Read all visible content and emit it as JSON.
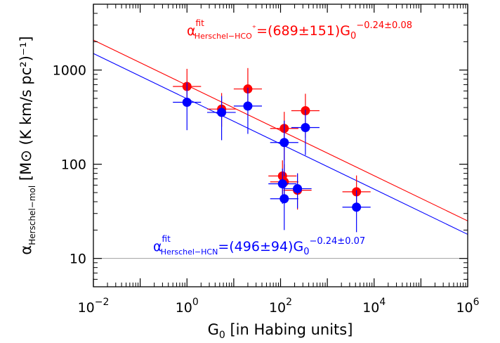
{
  "chart_data": {
    "type": "scatter",
    "x_scale": "log",
    "y_scale": "log",
    "xlim": [
      0.01,
      1000000
    ],
    "ylim": [
      5,
      5000
    ],
    "x_ticks": [
      {
        "value": 0.01,
        "base": "10",
        "exp": "−2"
      },
      {
        "value": 1,
        "base": "10",
        "exp": "0"
      },
      {
        "value": 100,
        "base": "10",
        "exp": "2"
      },
      {
        "value": 10000,
        "base": "10",
        "exp": "4"
      },
      {
        "value": 1000000,
        "base": "10",
        "exp": "6"
      }
    ],
    "y_ticks": [
      {
        "value": 10,
        "label": "10"
      },
      {
        "value": 100,
        "label": "100"
      },
      {
        "value": 1000,
        "label": "1000"
      }
    ],
    "xlabel": {
      "main": "G",
      "sub": "0",
      "rest": " [in Habing units]"
    },
    "ylabel": {
      "symbol": "α",
      "sub": "Herschel−mol",
      "rest": " [M⊙ (K km/s pc²)⁻¹]"
    },
    "reference_line": {
      "y": 10,
      "color": "#a0a0a0"
    },
    "series": [
      {
        "color": "#ff0000",
        "points": [
          {
            "x": 1.0,
            "y": 670,
            "xerr": [
              0.5,
              2.0
            ],
            "yerr": [
              470,
              1030
            ]
          },
          {
            "x": 5.5,
            "y": 385,
            "xerr": [
              2.7,
              11
            ],
            "yerr": [
              250,
              570
            ]
          },
          {
            "x": 20,
            "y": 630,
            "xerr": [
              10,
              40
            ],
            "yerr": [
              400,
              1050
            ]
          },
          {
            "x": 120,
            "y": 240,
            "xerr": [
              60,
              240
            ],
            "yerr": [
              110,
              360
            ]
          },
          {
            "x": 110,
            "y": 75,
            "xerr": [
              55,
              220
            ],
            "yerr": [
              45,
              110
            ]
          },
          {
            "x": 120,
            "y": 65,
            "xerr": [
              60,
              240
            ],
            "yerr": [
              40,
              100
            ]
          },
          {
            "x": 230,
            "y": 53,
            "xerr": [
              115,
              460
            ],
            "yerr": [
              33,
              80
            ]
          },
          {
            "x": 340,
            "y": 370,
            "xerr": [
              170,
              680
            ],
            "yerr": [
              190,
              560
            ]
          },
          {
            "x": 4200,
            "y": 51,
            "xerr": [
              2100,
              8400
            ],
            "yerr": [
              33,
              76
            ]
          }
        ]
      },
      {
        "color": "#0000ff",
        "points": [
          {
            "x": 1.0,
            "y": 455,
            "xerr": [
              0.5,
              2.0
            ],
            "yerr": [
              230,
              740
            ]
          },
          {
            "x": 5.5,
            "y": 355,
            "xerr": [
              2.7,
              11
            ],
            "yerr": [
              180,
              530
            ]
          },
          {
            "x": 20,
            "y": 415,
            "xerr": [
              10,
              40
            ],
            "yerr": [
              210,
              650
            ]
          },
          {
            "x": 120,
            "y": 170,
            "xerr": [
              60,
              240
            ],
            "yerr": [
              75,
              290
            ]
          },
          {
            "x": 110,
            "y": 62,
            "xerr": [
              55,
              220
            ],
            "yerr": [
              38,
              90
            ]
          },
          {
            "x": 120,
            "y": 43,
            "xerr": [
              60,
              240
            ],
            "yerr": [
              20,
              65
            ]
          },
          {
            "x": 230,
            "y": 55,
            "xerr": [
              115,
              460
            ],
            "yerr": [
              34,
              80
            ]
          },
          {
            "x": 340,
            "y": 245,
            "xerr": [
              170,
              680
            ],
            "yerr": [
              125,
              380
            ]
          },
          {
            "x": 4200,
            "y": 35,
            "xerr": [
              2100,
              8400
            ],
            "yerr": [
              19,
              53
            ]
          }
        ]
      }
    ],
    "fits": [
      {
        "color": "#ff0000",
        "coef": 689,
        "slope": -0.24,
        "label_pre": "α",
        "label_sup": "fit",
        "label_sub": "Herschel−HCO",
        "label_extra": "⁺",
        "label_eq": "=(689±151)G",
        "label_G_sub": "0",
        "label_exp": "−0.24±0.08"
      },
      {
        "color": "#0000ff",
        "coef": 496,
        "slope": -0.24,
        "label_pre": "α",
        "label_sup": "fit",
        "label_sub": "Herschel−HCN",
        "label_extra": "",
        "label_eq": "=(496±94)G",
        "label_G_sub": "0",
        "label_exp": "−0.24±0.07"
      }
    ]
  }
}
